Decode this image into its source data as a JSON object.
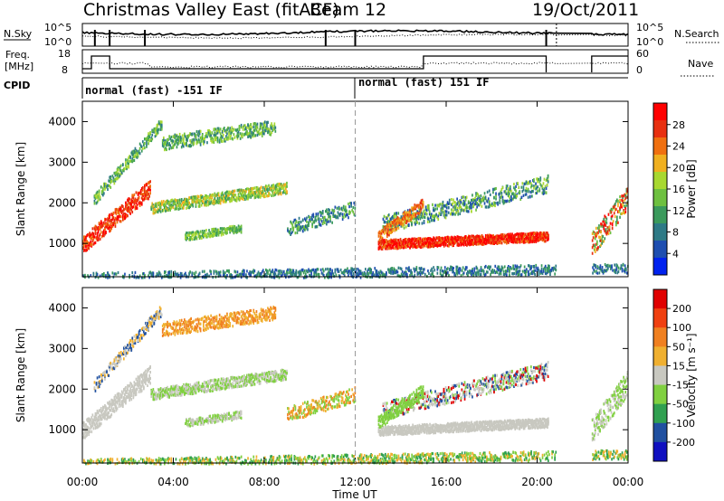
{
  "header": {
    "title": "Christmas Valley East (fitACF)",
    "beam": "Beam 12",
    "date": "19/Oct/2011"
  },
  "strip_labels": {
    "nsky": "N.Sky",
    "nsearch": "N.Search",
    "freq_line1": "Freq.",
    "freq_line2": "[MHz]",
    "nave": "Nave",
    "cpid": "CPID",
    "log_ticks": [
      "10^5",
      "10^0"
    ],
    "freq_ticks": [
      "18",
      "8"
    ],
    "nave_ticks": [
      "60",
      "0"
    ]
  },
  "cpid_modes": [
    {
      "label": "normal (fast) -151 IF",
      "start_hour": 0
    },
    {
      "label": "normal (fast) 151 IF",
      "start_hour": 12
    }
  ],
  "chart_data": [
    {
      "type": "heatmap",
      "title": "",
      "xlabel": "Time UT",
      "ylabel": "Slant Range [km]",
      "xlim": [
        0,
        24
      ],
      "ylim": [
        180,
        4500
      ],
      "x_ticks": [
        "00:00",
        "04:00",
        "08:00",
        "12:00",
        "16:00",
        "20:00",
        "00:00"
      ],
      "y_ticks": [
        1000,
        2000,
        3000,
        4000
      ],
      "data_gap_hours": [
        [
          20.8,
          22.4
        ]
      ],
      "colorbar": {
        "label": "Power [dB]",
        "range": [
          0,
          30
        ],
        "tick_labels": [
          "28",
          "24",
          "20",
          "16",
          "12",
          "8",
          "4"
        ],
        "colors": [
          "#0022ee",
          "#1e4eb0",
          "#2e7a86",
          "#3b9a5c",
          "#6ec040",
          "#a8d830",
          "#f0b020",
          "#f07010",
          "#e83010",
          "#ff0000"
        ]
      }
    },
    {
      "type": "heatmap",
      "title": "",
      "xlabel": "Time UT",
      "ylabel": "Slant Range [km]",
      "xlim": [
        0,
        24
      ],
      "ylim": [
        180,
        4500
      ],
      "x_ticks": [
        "00:00",
        "04:00",
        "08:00",
        "12:00",
        "16:00",
        "20:00",
        "00:00"
      ],
      "y_ticks": [
        1000,
        2000,
        3000,
        4000
      ],
      "data_gap_hours": [
        [
          20.8,
          22.4
        ]
      ],
      "colorbar": {
        "label": "Velocity [m s⁻¹]",
        "range": [
          -250,
          250
        ],
        "tick_labels": [
          "200",
          "100",
          "50",
          "15",
          "-15",
          "-50",
          "-100",
          "-200"
        ],
        "colors": [
          "#1010c0",
          "#2050a0",
          "#30a050",
          "#80d040",
          "#c8c8c0",
          "#f0b030",
          "#f08020",
          "#f04010",
          "#e00000"
        ]
      }
    }
  ]
}
